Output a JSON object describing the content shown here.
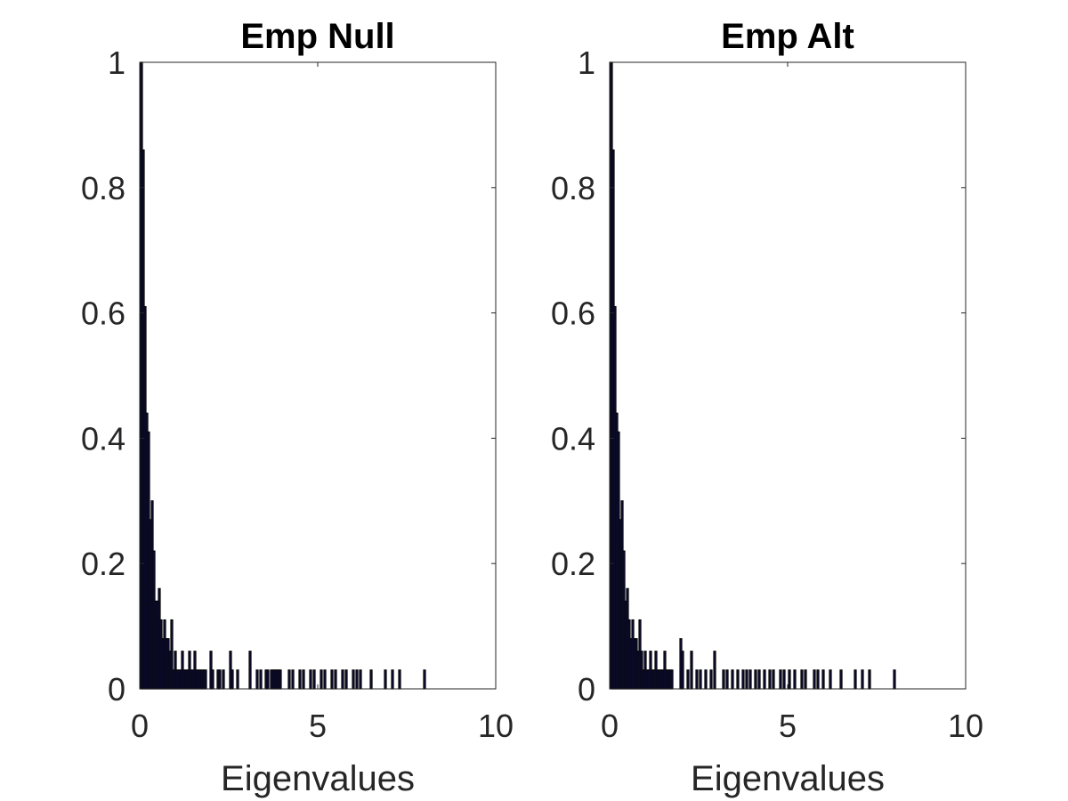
{
  "chart_data": [
    {
      "type": "bar",
      "title": "Emp Null",
      "xlabel": "Eigenvalues",
      "ylabel": "",
      "xlim": [
        0,
        10
      ],
      "ylim": [
        0,
        1
      ],
      "xticks": [
        "0",
        "5",
        "10"
      ],
      "yticks": [
        "0",
        "0.2",
        "0.4",
        "0.6",
        "0.8",
        "1"
      ],
      "grid": false,
      "bar_color": "#1a1a5e",
      "bar_width": 0.05,
      "x": [
        0.05,
        0.1,
        0.15,
        0.2,
        0.25,
        0.3,
        0.35,
        0.4,
        0.45,
        0.5,
        0.55,
        0.6,
        0.65,
        0.7,
        0.75,
        0.8,
        0.85,
        0.9,
        0.95,
        1.0,
        1.05,
        1.1,
        1.15,
        1.2,
        1.25,
        1.3,
        1.35,
        1.4,
        1.45,
        1.5,
        1.55,
        1.6,
        1.65,
        1.7,
        1.75,
        1.8,
        1.85,
        2.0,
        2.05,
        2.2,
        2.25,
        2.35,
        2.55,
        2.6,
        2.75,
        3.1,
        3.3,
        3.4,
        3.55,
        3.6,
        3.7,
        3.75,
        3.8,
        3.85,
        3.9,
        3.95,
        4.2,
        4.3,
        4.5,
        4.6,
        4.8,
        4.9,
        5.1,
        5.2,
        5.4,
        5.5,
        5.7,
        5.8,
        6.0,
        6.1,
        6.2,
        6.5,
        6.9,
        7.1,
        7.3,
        8.0
      ],
      "values": [
        1.0,
        0.86,
        0.61,
        0.44,
        0.41,
        0.27,
        0.3,
        0.22,
        0.14,
        0.14,
        0.16,
        0.11,
        0.08,
        0.11,
        0.08,
        0.08,
        0.06,
        0.11,
        0.03,
        0.06,
        0.03,
        0.03,
        0.03,
        0.06,
        0.03,
        0.03,
        0.03,
        0.06,
        0.03,
        0.03,
        0.06,
        0.03,
        0.03,
        0.03,
        0.03,
        0.03,
        0.03,
        0.06,
        0.03,
        0.03,
        0.03,
        0.03,
        0.06,
        0.03,
        0.03,
        0.06,
        0.03,
        0.03,
        0.03,
        0.03,
        0.03,
        0.03,
        0.03,
        0.03,
        0.03,
        0.03,
        0.03,
        0.03,
        0.03,
        0.03,
        0.03,
        0.03,
        0.03,
        0.03,
        0.03,
        0.03,
        0.03,
        0.03,
        0.03,
        0.03,
        0.03,
        0.03,
        0.03,
        0.03,
        0.03,
        0.03
      ]
    },
    {
      "type": "bar",
      "title": "Emp Alt",
      "xlabel": "Eigenvalues",
      "ylabel": "",
      "xlim": [
        0,
        10
      ],
      "ylim": [
        0,
        1
      ],
      "xticks": [
        "0",
        "5",
        "10"
      ],
      "yticks": [
        "0",
        "0.2",
        "0.4",
        "0.6",
        "0.8",
        "1"
      ],
      "grid": false,
      "bar_color": "#1a1a5e",
      "bar_width": 0.05,
      "x": [
        0.05,
        0.1,
        0.15,
        0.2,
        0.25,
        0.3,
        0.35,
        0.4,
        0.45,
        0.5,
        0.55,
        0.6,
        0.65,
        0.7,
        0.75,
        0.8,
        0.85,
        0.9,
        0.95,
        1.0,
        1.05,
        1.1,
        1.15,
        1.2,
        1.25,
        1.3,
        1.35,
        1.4,
        1.45,
        1.5,
        1.55,
        1.6,
        1.65,
        1.7,
        1.75,
        2.0,
        2.05,
        2.2,
        2.3,
        2.45,
        2.55,
        2.7,
        2.85,
        2.95,
        3.2,
        3.3,
        3.45,
        3.6,
        3.75,
        3.85,
        3.95,
        4.1,
        4.2,
        4.35,
        4.5,
        4.6,
        4.8,
        4.9,
        5.05,
        5.2,
        5.4,
        5.5,
        5.75,
        5.85,
        6.0,
        6.2,
        6.5,
        6.9,
        7.1,
        7.3,
        8.0
      ],
      "values": [
        1.0,
        0.86,
        0.61,
        0.44,
        0.41,
        0.27,
        0.3,
        0.22,
        0.14,
        0.16,
        0.11,
        0.08,
        0.11,
        0.08,
        0.08,
        0.06,
        0.11,
        0.06,
        0.03,
        0.06,
        0.03,
        0.03,
        0.06,
        0.03,
        0.03,
        0.06,
        0.03,
        0.03,
        0.03,
        0.03,
        0.06,
        0.03,
        0.03,
        0.03,
        0.03,
        0.08,
        0.06,
        0.03,
        0.06,
        0.03,
        0.03,
        0.03,
        0.03,
        0.06,
        0.03,
        0.03,
        0.03,
        0.03,
        0.03,
        0.03,
        0.03,
        0.03,
        0.03,
        0.03,
        0.03,
        0.03,
        0.03,
        0.03,
        0.03,
        0.03,
        0.03,
        0.03,
        0.03,
        0.03,
        0.03,
        0.03,
        0.03,
        0.03,
        0.03,
        0.03,
        0.03
      ]
    }
  ]
}
